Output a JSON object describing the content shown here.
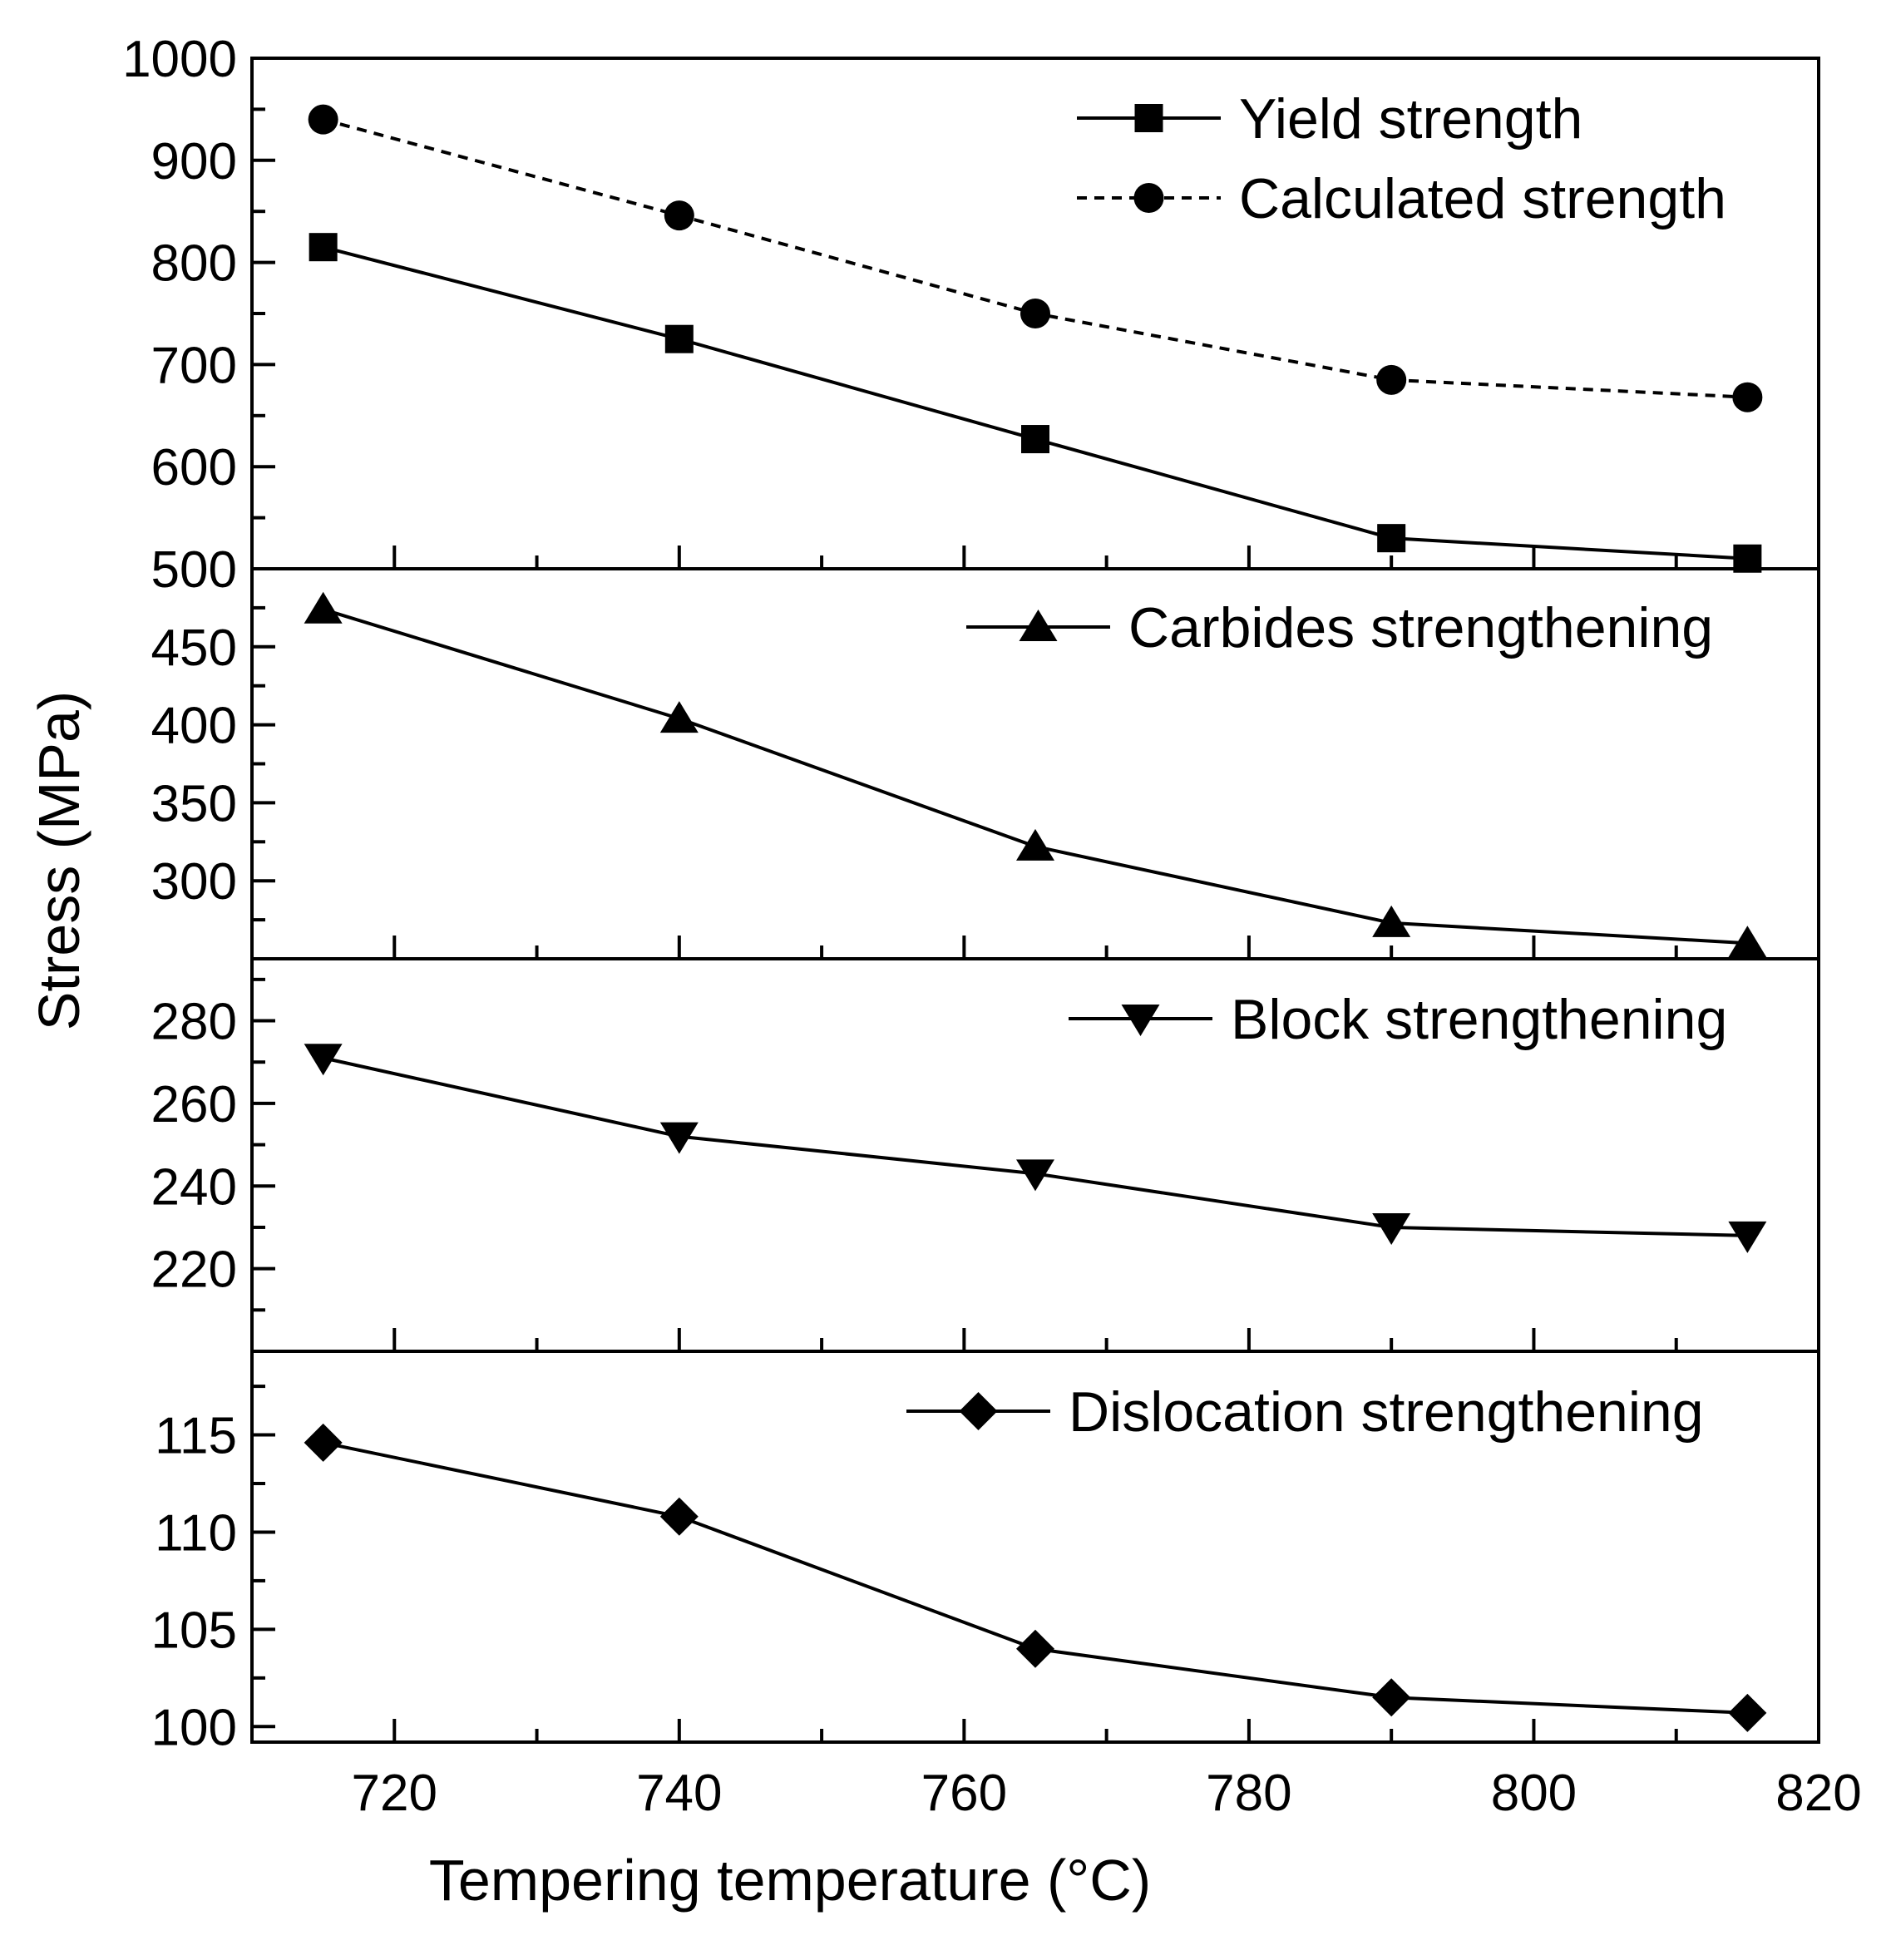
{
  "chart_data": {
    "type": "line",
    "layout": "stacked-panels",
    "xlabel": "Tempering temperature (°C)",
    "ylabel": "Stress (MPa)",
    "xlim": [
      710,
      820
    ],
    "x": [
      715,
      740,
      765,
      790,
      815
    ],
    "x_ticks": [
      720,
      740,
      760,
      780,
      800,
      820
    ],
    "x_tick_labels": [
      "720",
      "740",
      "760",
      "780",
      "800",
      "820"
    ],
    "panels": [
      {
        "ylim": [
          500,
          1000
        ],
        "y_ticks": [
          500,
          600,
          700,
          800,
          900,
          1000
        ],
        "y_tick_labels": [
          "500",
          "600",
          "700",
          "800",
          "900",
          "1000"
        ],
        "series": [
          {
            "name": "Yield strength",
            "marker": "square",
            "line": "solid",
            "values": [
              815,
              725,
              627,
              530,
              510
            ]
          },
          {
            "name": "Calculated strength",
            "marker": "circle",
            "line": "dashed",
            "values": [
              940,
              846,
              750,
              685,
              668
            ]
          }
        ]
      },
      {
        "ylim": [
          250,
          500
        ],
        "y_ticks": [
          300,
          350,
          400,
          450
        ],
        "y_tick_labels": [
          "300",
          "350",
          "400",
          "450"
        ],
        "series": [
          {
            "name": "Carbides strengthening",
            "marker": "triangle-up",
            "line": "solid",
            "values": [
              474,
              404,
              322,
              273,
              260
            ]
          }
        ]
      },
      {
        "ylim": [
          200,
          295
        ],
        "y_ticks": [
          220,
          240,
          260,
          280
        ],
        "y_tick_labels": [
          "220",
          "240",
          "260",
          "280"
        ],
        "series": [
          {
            "name": "Block strengthening",
            "marker": "triangle-down",
            "line": "solid",
            "values": [
              271,
              252,
              243,
              230,
              228
            ]
          }
        ]
      },
      {
        "ylim": [
          99.2,
          119.3
        ],
        "y_ticks": [
          100,
          105,
          110,
          115
        ],
        "y_tick_labels": [
          "100",
          "105",
          "110",
          "115"
        ],
        "series": [
          {
            "name": "Dislocation strengthening",
            "marker": "diamond",
            "line": "solid",
            "values": [
              114.6,
              110.8,
              104,
              101.5,
              100.7
            ]
          }
        ]
      }
    ]
  }
}
